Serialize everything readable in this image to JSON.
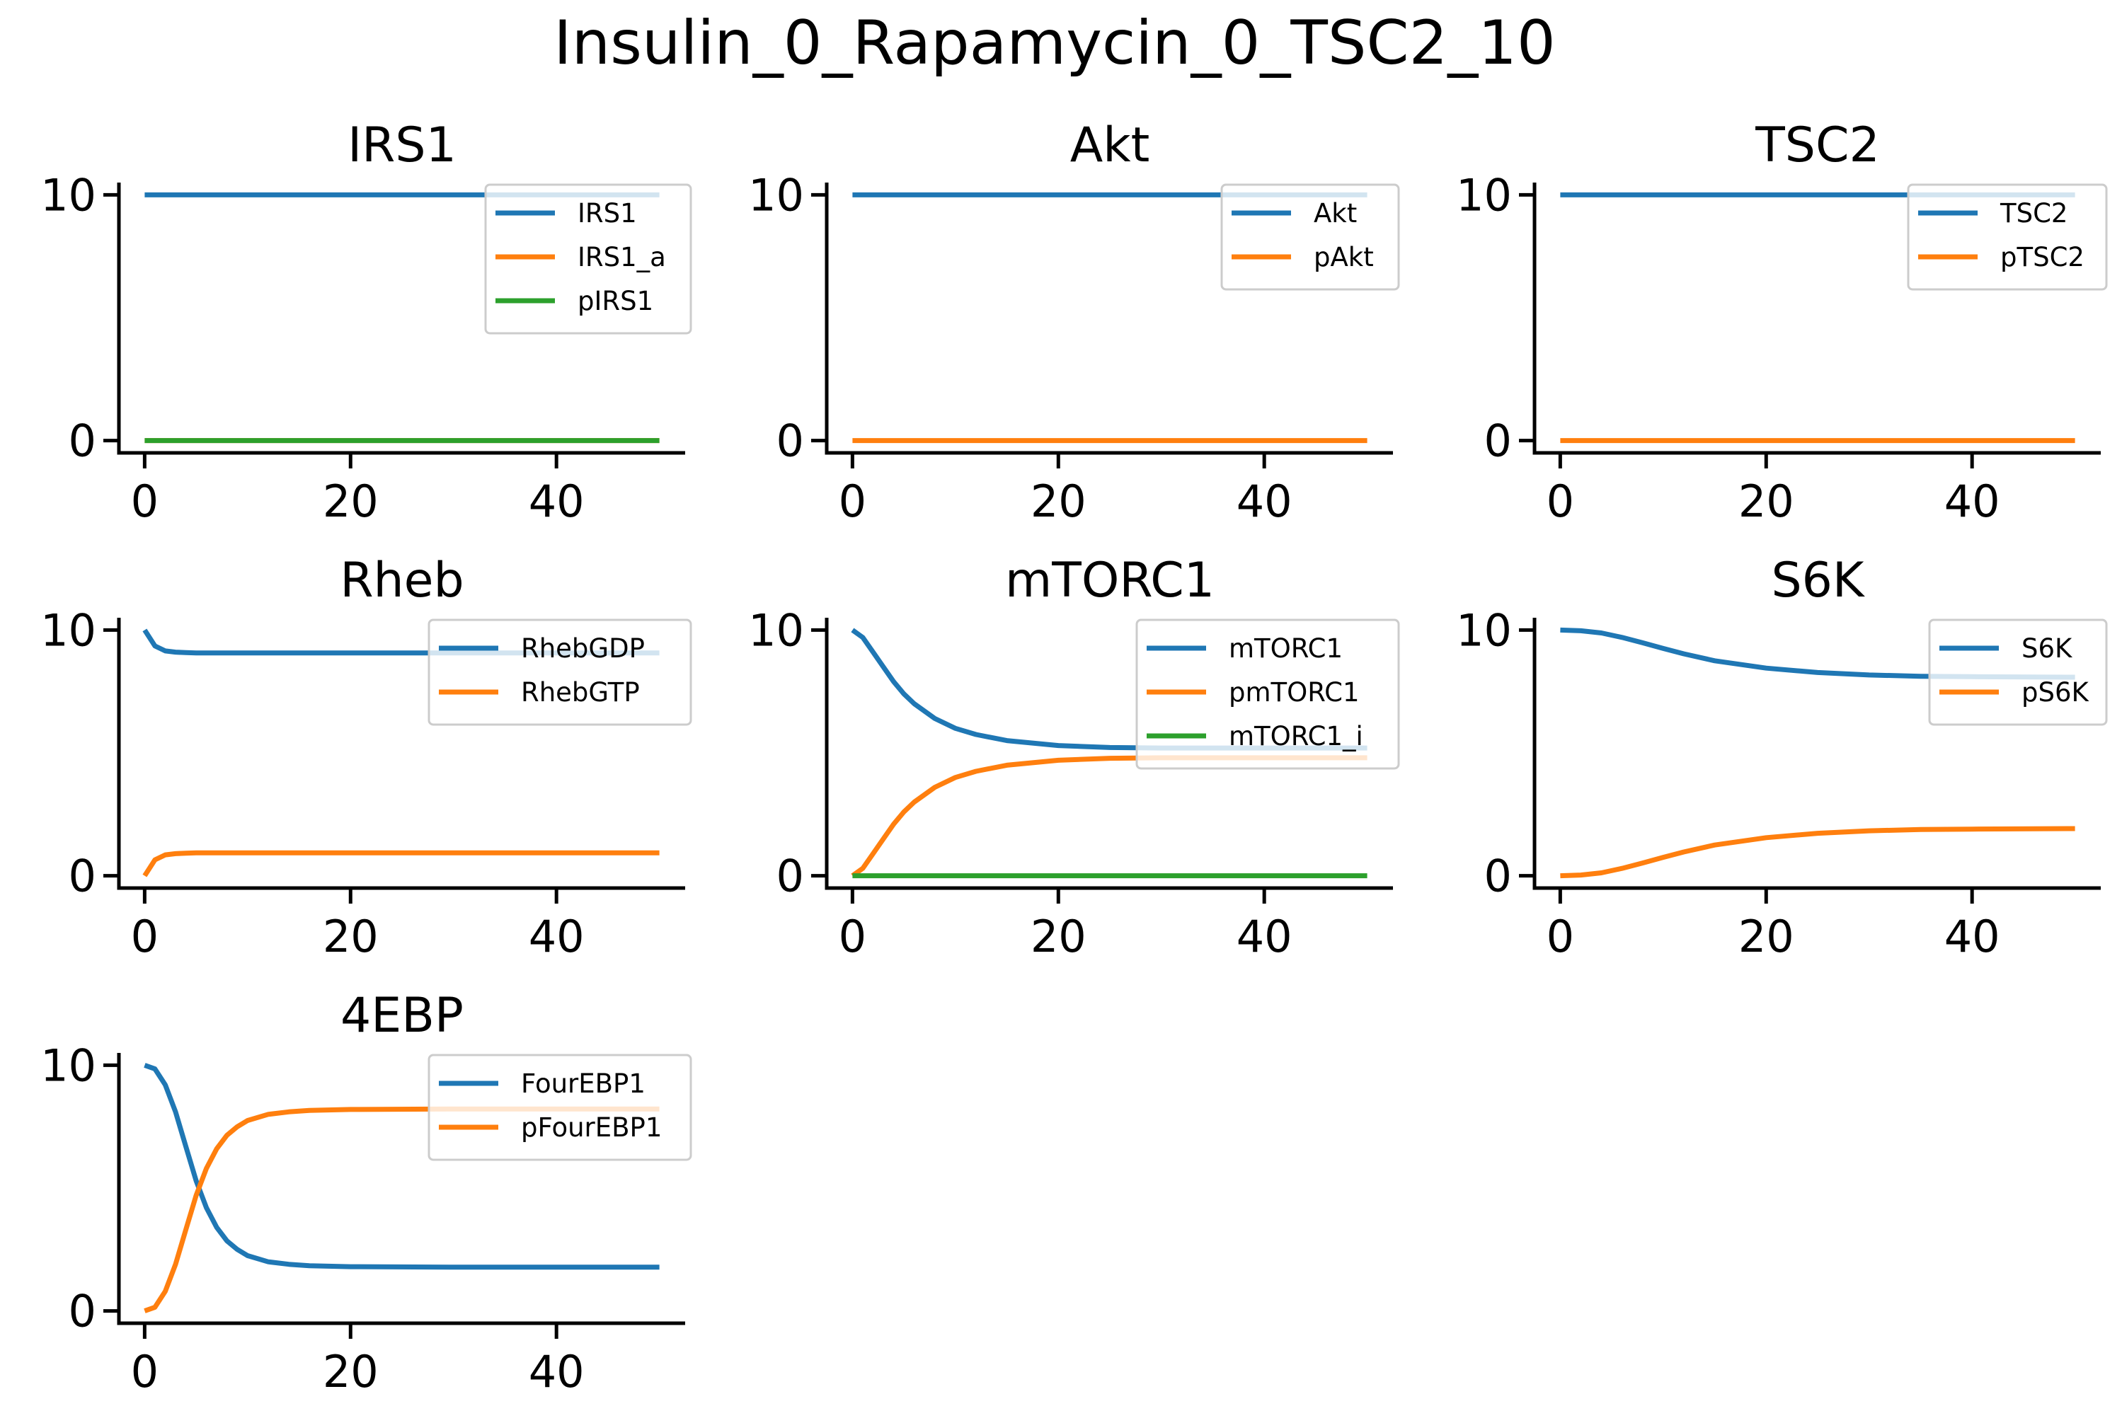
{
  "page": {
    "title": "Insulin_0_Rapamycin_0_TSC2_10"
  },
  "chart_data": [
    {
      "type": "line",
      "title": "IRS1",
      "xlim": [
        -2.5,
        52.5
      ],
      "ylim": [
        -0.5,
        10.5
      ],
      "x_ticks": [
        0,
        20,
        40
      ],
      "y_ticks": [
        0,
        10
      ],
      "legend": "top-right",
      "x": [
        0,
        50
      ],
      "series": [
        {
          "name": "IRS1",
          "color": "#1f77b4",
          "values": [
            10,
            10
          ]
        },
        {
          "name": "IRS1_a",
          "color": "#ff7f0e",
          "values": [
            0,
            0
          ]
        },
        {
          "name": "pIRS1",
          "color": "#2ca02c",
          "values": [
            0,
            0
          ]
        }
      ]
    },
    {
      "type": "line",
      "title": "Akt",
      "xlim": [
        -2.5,
        52.5
      ],
      "ylim": [
        -0.5,
        10.5
      ],
      "x_ticks": [
        0,
        20,
        40
      ],
      "y_ticks": [
        0,
        10
      ],
      "legend": "top-right",
      "x": [
        0,
        50
      ],
      "series": [
        {
          "name": "Akt",
          "color": "#1f77b4",
          "values": [
            10,
            10
          ]
        },
        {
          "name": "pAkt",
          "color": "#ff7f0e",
          "values": [
            0,
            0
          ]
        }
      ]
    },
    {
      "type": "line",
      "title": "TSC2",
      "xlim": [
        -2.5,
        52.5
      ],
      "ylim": [
        -0.5,
        10.5
      ],
      "x_ticks": [
        0,
        20,
        40
      ],
      "y_ticks": [
        0,
        10
      ],
      "legend": "top-right",
      "x": [
        0,
        50
      ],
      "series": [
        {
          "name": "TSC2",
          "color": "#1f77b4",
          "values": [
            10,
            10
          ]
        },
        {
          "name": "pTSC2",
          "color": "#ff7f0e",
          "values": [
            0,
            0
          ]
        }
      ]
    },
    {
      "type": "line",
      "title": "Rheb",
      "xlim": [
        -2.5,
        52.5
      ],
      "ylim": [
        -0.5,
        10.5
      ],
      "x_ticks": [
        0,
        20,
        40
      ],
      "y_ticks": [
        0,
        10
      ],
      "legend": "top-right",
      "x": [
        0,
        1,
        2,
        3,
        4,
        5,
        6,
        8,
        10,
        15,
        20,
        30,
        40,
        50
      ],
      "series": [
        {
          "name": "RhebGDP",
          "color": "#1f77b4",
          "values": [
            10,
            9.35,
            9.15,
            9.1,
            9.08,
            9.07,
            9.07,
            9.07,
            9.07,
            9.07,
            9.07,
            9.07,
            9.07,
            9.07
          ]
        },
        {
          "name": "RhebGTP",
          "color": "#ff7f0e",
          "values": [
            0,
            0.65,
            0.85,
            0.9,
            0.92,
            0.93,
            0.93,
            0.93,
            0.93,
            0.93,
            0.93,
            0.93,
            0.93,
            0.93
          ]
        }
      ]
    },
    {
      "type": "line",
      "title": "mTORC1",
      "xlim": [
        -2.5,
        52.5
      ],
      "ylim": [
        -0.5,
        10.5
      ],
      "x_ticks": [
        0,
        20,
        40
      ],
      "y_ticks": [
        0,
        10
      ],
      "legend": "top-right",
      "x": [
        0,
        1,
        2,
        3,
        4,
        5,
        6,
        8,
        10,
        12,
        15,
        20,
        25,
        30,
        40,
        50
      ],
      "series": [
        {
          "name": "mTORC1",
          "color": "#1f77b4",
          "values": [
            10,
            9.7,
            9.1,
            8.5,
            7.9,
            7.4,
            7.0,
            6.4,
            6.0,
            5.75,
            5.5,
            5.3,
            5.22,
            5.2,
            5.2,
            5.2
          ]
        },
        {
          "name": "pmTORC1",
          "color": "#ff7f0e",
          "values": [
            0,
            0.3,
            0.9,
            1.5,
            2.1,
            2.6,
            3.0,
            3.6,
            4.0,
            4.25,
            4.5,
            4.7,
            4.78,
            4.8,
            4.8,
            4.8
          ]
        },
        {
          "name": "mTORC1_i",
          "color": "#2ca02c",
          "values": [
            0,
            0,
            0,
            0,
            0,
            0,
            0,
            0,
            0,
            0,
            0,
            0,
            0,
            0,
            0,
            0
          ]
        }
      ]
    },
    {
      "type": "line",
      "title": "S6K",
      "xlim": [
        -2.5,
        52.5
      ],
      "ylim": [
        -0.5,
        10.5
      ],
      "x_ticks": [
        0,
        20,
        40
      ],
      "y_ticks": [
        0,
        10
      ],
      "legend": "top-right",
      "x": [
        0,
        2,
        4,
        6,
        8,
        10,
        12,
        15,
        20,
        25,
        30,
        35,
        40,
        50
      ],
      "series": [
        {
          "name": "S6K",
          "color": "#1f77b4",
          "values": [
            10,
            9.97,
            9.88,
            9.7,
            9.48,
            9.25,
            9.03,
            8.75,
            8.45,
            8.27,
            8.17,
            8.12,
            8.1,
            8.08
          ]
        },
        {
          "name": "pS6K",
          "color": "#ff7f0e",
          "values": [
            0,
            0.03,
            0.12,
            0.3,
            0.52,
            0.75,
            0.97,
            1.25,
            1.55,
            1.73,
            1.83,
            1.88,
            1.9,
            1.92
          ]
        }
      ]
    },
    {
      "type": "line",
      "title": "4EBP",
      "xlim": [
        -2.5,
        52.5
      ],
      "ylim": [
        -0.5,
        10.5
      ],
      "x_ticks": [
        0,
        20,
        40
      ],
      "y_ticks": [
        0,
        10
      ],
      "legend": "top-right",
      "x": [
        0,
        1,
        2,
        3,
        4,
        5,
        6,
        7,
        8,
        9,
        10,
        12,
        14,
        16,
        20,
        30,
        40,
        50
      ],
      "series": [
        {
          "name": "FourEBP1",
          "color": "#1f77b4",
          "values": [
            10,
            9.85,
            9.2,
            8.1,
            6.7,
            5.3,
            4.2,
            3.4,
            2.85,
            2.5,
            2.25,
            2.0,
            1.9,
            1.84,
            1.8,
            1.78,
            1.78,
            1.78
          ]
        },
        {
          "name": "pFourEBP1",
          "color": "#ff7f0e",
          "values": [
            0,
            0.15,
            0.8,
            1.9,
            3.3,
            4.7,
            5.8,
            6.6,
            7.15,
            7.5,
            7.75,
            8.0,
            8.1,
            8.16,
            8.2,
            8.22,
            8.22,
            8.22
          ]
        }
      ]
    }
  ]
}
